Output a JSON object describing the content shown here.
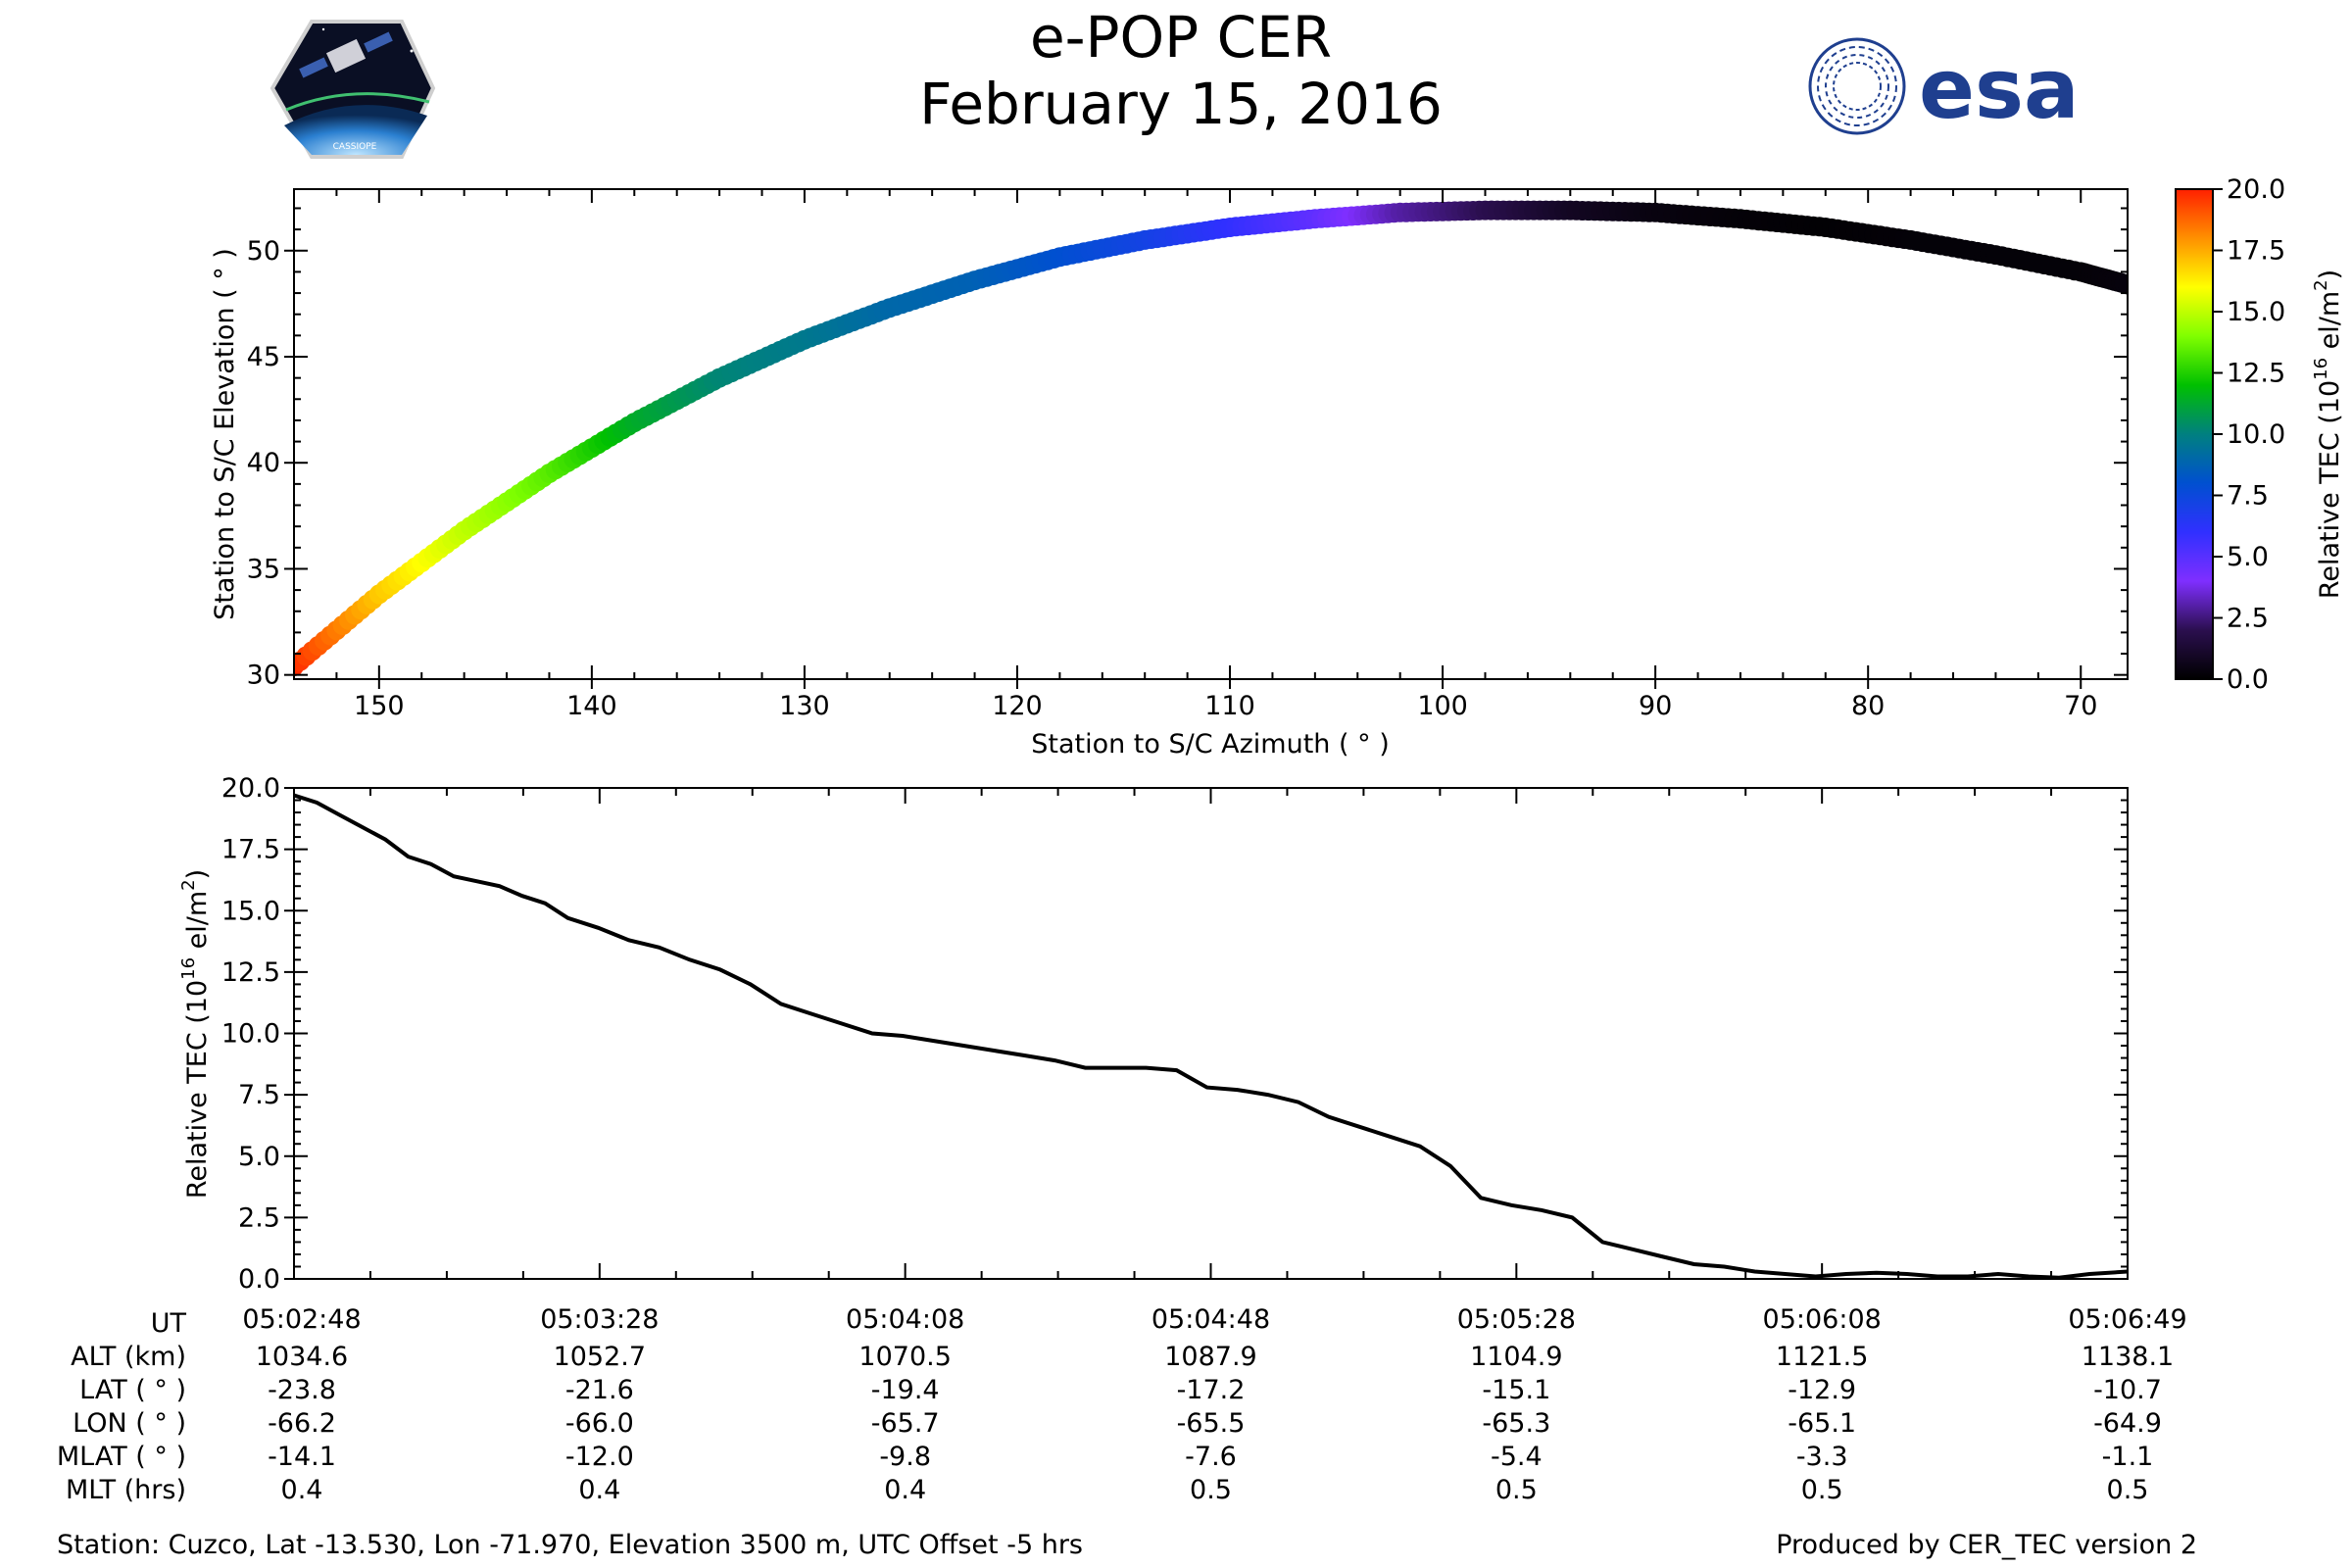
{
  "header": {
    "title": "e-POP CER",
    "date": "February 15, 2016",
    "esa_logo_text": "esa",
    "mission_logo_text": "CASSIOPE"
  },
  "colors": {
    "line": "#000000",
    "esa_blue": "#1f3f8f",
    "colormap_stops": [
      "#000000",
      "#2b0f4f",
      "#7f2fff",
      "#3030ff",
      "#0050d0",
      "#008080",
      "#00c000",
      "#80ff00",
      "#ffff00",
      "#ff9000",
      "#ff2000"
    ]
  },
  "chart_data": [
    {
      "type": "scatter",
      "title": "",
      "xlabel": "Station to S/C Azimuth ( ° )",
      "ylabel": "Station to S/C Elevation ( ° )",
      "xlim": [
        154,
        67.8
      ],
      "ylim": [
        29.8,
        52.9
      ],
      "xticks": [
        150,
        140,
        130,
        120,
        110,
        100,
        90,
        80,
        70
      ],
      "yticks": [
        30,
        35,
        40,
        45,
        50
      ],
      "x": [
        154,
        150,
        146,
        142,
        138,
        134,
        130,
        126,
        122,
        118,
        114,
        110,
        106,
        102,
        98,
        94,
        90,
        86,
        82,
        78,
        74,
        70,
        67.8
      ],
      "y": [
        30.4,
        33.8,
        36.8,
        39.5,
        41.9,
        44.0,
        45.8,
        47.3,
        48.6,
        49.7,
        50.5,
        51.1,
        51.5,
        51.8,
        51.9,
        51.9,
        51.8,
        51.5,
        51.1,
        50.5,
        49.8,
        49.0,
        48.4
      ],
      "color_values": [
        19.8,
        17.0,
        15.0,
        13.4,
        11.4,
        10.2,
        9.7,
        9.0,
        8.7,
        8.0,
        7.2,
        6.0,
        4.8,
        3.0,
        2.0,
        0.9,
        0.4,
        0.2,
        0.1,
        0.2,
        0.2,
        0.2,
        0.3
      ],
      "colorbar": {
        "label": "Relative TEC (10",
        "label_sup": "16",
        "label_end": " el/m",
        "label_sup2": "2",
        "label_close": ")",
        "range": [
          0,
          20
        ],
        "ticks": [
          "0.0",
          "2.5",
          "5.0",
          "7.5",
          "10.0",
          "12.5",
          "15.0",
          "17.5",
          "20.0"
        ]
      }
    },
    {
      "type": "line",
      "title": "",
      "xlabel": "",
      "ylabel": "Relative TEC (10",
      "ylabel_sup": "16",
      "ylabel_end": " el/m",
      "ylabel_sup2": "2",
      "ylabel_close": ")",
      "xlim": [
        0,
        241
      ],
      "ylim": [
        0,
        20
      ],
      "yticks": [
        "0.0",
        "2.5",
        "5.0",
        "7.5",
        "10.0",
        "12.5",
        "15.0",
        "17.5",
        "20.0"
      ],
      "x": [
        0,
        3,
        6,
        9,
        12,
        15,
        18,
        21,
        24,
        27,
        30,
        33,
        36,
        40,
        44,
        48,
        52,
        56,
        60,
        64,
        68,
        72,
        76,
        80,
        84,
        88,
        92,
        96,
        100,
        104,
        108,
        112,
        116,
        120,
        124,
        128,
        132,
        136,
        140,
        144,
        148,
        152,
        156,
        160,
        164,
        168,
        172,
        176,
        180,
        184,
        188,
        192,
        196,
        200,
        204,
        208,
        212,
        216,
        220,
        224,
        228,
        232,
        236,
        241
      ],
      "values": [
        19.7,
        19.4,
        18.9,
        18.4,
        17.9,
        17.2,
        16.9,
        16.4,
        16.2,
        16.0,
        15.6,
        15.3,
        14.7,
        14.3,
        13.8,
        13.5,
        13.0,
        12.6,
        12.0,
        11.2,
        10.8,
        10.4,
        10.0,
        9.9,
        9.7,
        9.5,
        9.3,
        9.1,
        8.9,
        8.6,
        8.6,
        8.6,
        8.5,
        7.8,
        7.7,
        7.5,
        7.2,
        6.6,
        6.2,
        5.8,
        5.4,
        4.6,
        3.3,
        3.0,
        2.8,
        2.5,
        1.5,
        1.2,
        0.9,
        0.6,
        0.5,
        0.3,
        0.2,
        0.1,
        0.2,
        0.25,
        0.2,
        0.1,
        0.1,
        0.2,
        0.1,
        0.05,
        0.2,
        0.3
      ],
      "time_labels": [
        "05:02:48",
        "05:03:28",
        "05:04:08",
        "05:04:48",
        "05:05:28",
        "05:06:08",
        "05:06:49"
      ]
    }
  ],
  "info_table": {
    "row_labels": [
      "UT",
      "ALT (km)",
      "LAT ( ° )",
      "LON ( ° )",
      "MLAT ( ° )",
      "MLT (hrs)"
    ],
    "columns": [
      [
        "05:02:48",
        "1034.6",
        "-23.8",
        "-66.2",
        "-14.1",
        "0.4"
      ],
      [
        "05:03:28",
        "1052.7",
        "-21.6",
        "-66.0",
        "-12.0",
        "0.4"
      ],
      [
        "05:04:08",
        "1070.5",
        "-19.4",
        "-65.7",
        "-9.8",
        "0.4"
      ],
      [
        "05:04:48",
        "1087.9",
        "-17.2",
        "-65.5",
        "-7.6",
        "0.5"
      ],
      [
        "05:05:28",
        "1104.9",
        "-15.1",
        "-65.3",
        "-5.4",
        "0.5"
      ],
      [
        "05:06:08",
        "1121.5",
        "-12.9",
        "-65.1",
        "-3.3",
        "0.5"
      ],
      [
        "05:06:49",
        "1138.1",
        "-10.7",
        "-64.9",
        "-1.1",
        "0.5"
      ]
    ]
  },
  "footer": {
    "station": "Station: Cuzco, Lat -13.530, Lon -71.970, Elevation 3500 m, UTC Offset -5 hrs",
    "produced_by": "Produced by CER_TEC version 2"
  }
}
